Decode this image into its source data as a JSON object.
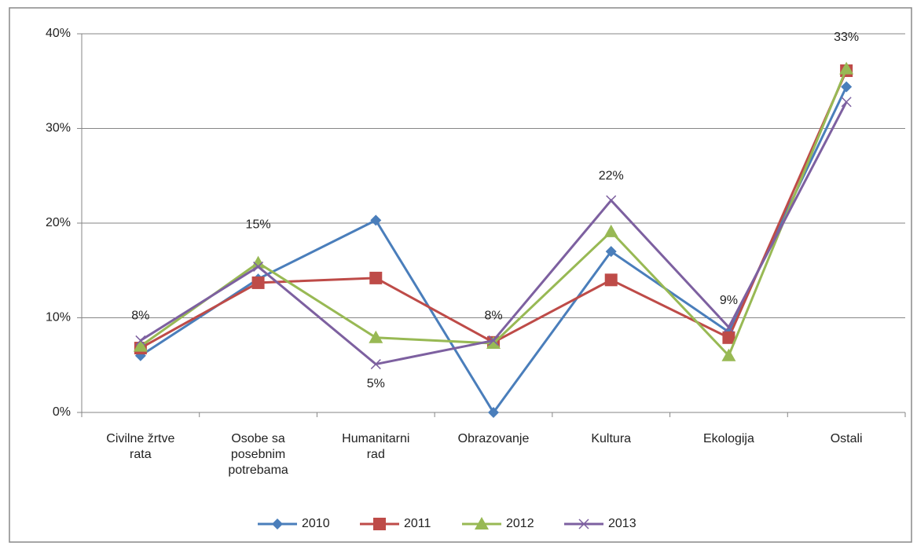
{
  "chart_data": {
    "type": "line",
    "categories": [
      "Civilne žrtve rata",
      "Osobe sa posebnim potrebama",
      "Humanitarni rad",
      "Obrazovanje",
      "Kultura",
      "Ekologija",
      "Ostali"
    ],
    "series": [
      {
        "name": "2010",
        "color": "#4a7ebb",
        "marker": "diamond",
        "values": [
          6.0,
          14.1,
          20.3,
          0,
          17.0,
          8.5,
          34.4
        ]
      },
      {
        "name": "2011",
        "color": "#be4b48",
        "marker": "square",
        "values": [
          6.8,
          13.7,
          14.2,
          7.4,
          14.0,
          7.9,
          36.1
        ]
      },
      {
        "name": "2012",
        "color": "#98b954",
        "marker": "triangle",
        "values": [
          7.0,
          15.8,
          7.9,
          7.3,
          19.1,
          6.0,
          36.3
        ]
      },
      {
        "name": "2013",
        "color": "#7d60a0",
        "marker": "x",
        "values": [
          7.6,
          15.4,
          5.1,
          7.6,
          22.4,
          9.0,
          32.8
        ],
        "value_labels": [
          "8%",
          "15%",
          "5%",
          "8%",
          "22%",
          "9%",
          "33%"
        ]
      }
    ],
    "ylim": [
      0,
      40
    ],
    "yticks": [
      {
        "value": 0,
        "label": "0%"
      },
      {
        "value": 10,
        "label": "10%"
      },
      {
        "value": 20,
        "label": "20%"
      },
      {
        "value": 30,
        "label": "30%"
      },
      {
        "value": 40,
        "label": "40%"
      }
    ],
    "grid": true,
    "legend": "bottom"
  }
}
